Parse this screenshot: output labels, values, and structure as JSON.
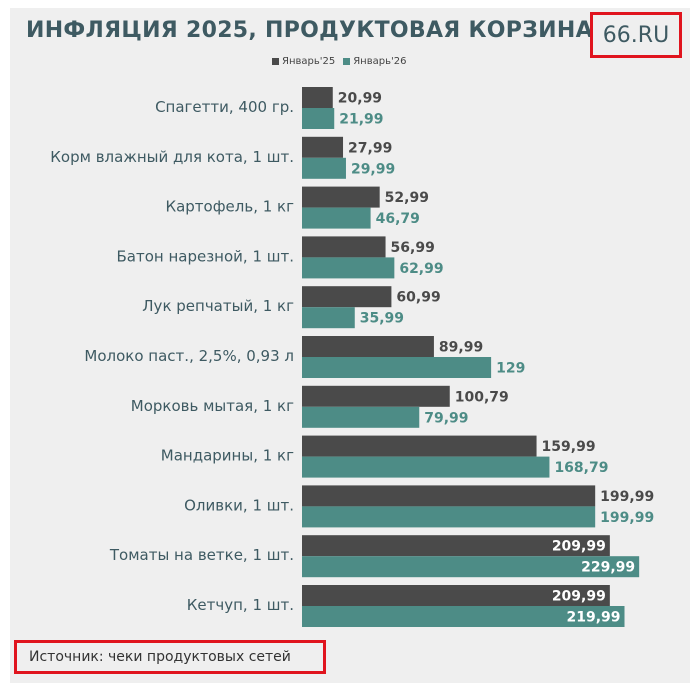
{
  "title": "ИНФЛЯЦИЯ 2025, ПРОДУКТОВАЯ КОРЗИНА",
  "logo": "66.RU",
  "source": "Источник: чеки продуктовых сетей",
  "colors": {
    "jan25": "#4a4a4a",
    "jan26": "#4d8c86",
    "title": "#3e5a62",
    "highlight": "#e0141e"
  },
  "chart_data": {
    "type": "bar",
    "orientation": "horizontal",
    "categories": [
      "Спагетти, 400 гр.",
      "Корм влажный для кота, 1 шт.",
      "Картофель, 1 кг",
      "Батон нарезной, 1 шт.",
      "Лук репчатый, 1 кг",
      "Молоко паст., 2,5%, 0,93 л",
      "Морковь мытая, 1 кг",
      "Мандарины, 1 кг",
      "Оливки, 1 шт.",
      "Томаты на ветке, 1 шт.",
      "Кетчуп, 1 шт."
    ],
    "series": [
      {
        "name": "Январь'25",
        "values": [
          20.99,
          27.99,
          52.99,
          56.99,
          60.99,
          89.99,
          100.79,
          159.99,
          199.99,
          209.99,
          209.99
        ],
        "labels": [
          "20,99",
          "27,99",
          "52,99",
          "56,99",
          "60,99",
          "89,99",
          "100,79",
          "159,99",
          "199,99",
          "209,99",
          "209,99"
        ]
      },
      {
        "name": "Январь'26",
        "values": [
          21.99,
          29.99,
          46.79,
          62.99,
          35.99,
          129,
          79.99,
          168.79,
          199.99,
          229.99,
          219.99
        ],
        "labels": [
          "21,99",
          "29,99",
          "46,79",
          "62,99",
          "35,99",
          "129",
          "79,99",
          "168,79",
          "199,99",
          "229,99",
          "219,99"
        ]
      }
    ],
    "legend": "top",
    "grid": false
  }
}
